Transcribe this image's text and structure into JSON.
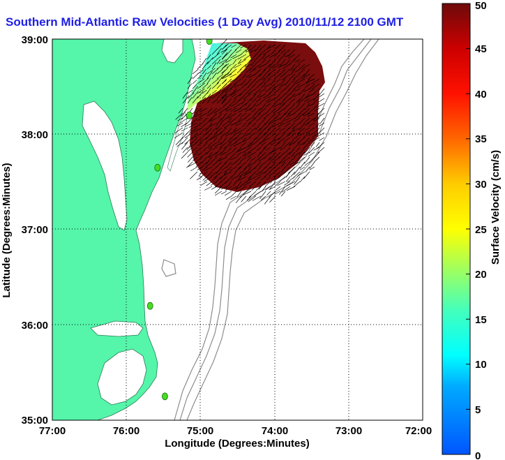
{
  "title": "Southern Mid-Atlantic Raw Velocities (1 Day Avg) 2010/11/12 2100 GMT",
  "map": {
    "x_axis": {
      "label": "Longitude (Degrees:Minutes)",
      "ticks": [
        "77:00",
        "76:00",
        "75:00",
        "74:00",
        "73:00",
        "72:00"
      ],
      "range": [
        -77,
        -72
      ]
    },
    "y_axis": {
      "label": "Latitude (Degrees:Minutes)",
      "ticks": [
        "39:00",
        "38:00",
        "37:00",
        "36:00",
        "35:00"
      ],
      "range": [
        35,
        39
      ]
    },
    "grid": "dotted",
    "colors": {
      "land": "#55f5aa",
      "coast_outline": "#3a3a3a",
      "isobath": "#8c8c8c",
      "station_marker": "#44dd22",
      "velocity_field": "#7a0d0d",
      "vectors": "#000000"
    },
    "stations": [
      {
        "name": "station",
        "lon": -74.88,
        "lat": 38.98
      },
      {
        "name": "station",
        "lon": -75.15,
        "lat": 38.2
      },
      {
        "name": "station",
        "lon": -75.58,
        "lat": 37.65
      },
      {
        "name": "station",
        "lon": -75.68,
        "lat": 36.2
      },
      {
        "name": "station",
        "lon": -75.48,
        "lat": 35.25
      }
    ]
  },
  "colorbar": {
    "label": "Surface Velocity (cm/s)",
    "ticks": [
      "0",
      "5",
      "10",
      "15",
      "20",
      "25",
      "30",
      "35",
      "40",
      "45",
      "50"
    ],
    "range": [
      0,
      50
    ]
  }
}
